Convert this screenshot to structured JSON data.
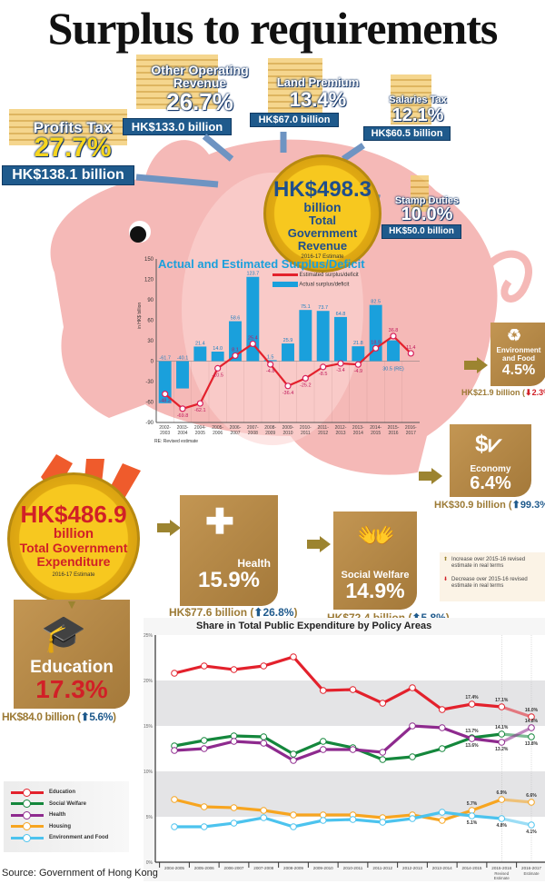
{
  "title": "Surplus to requirements",
  "revenue": {
    "items": [
      {
        "name": "Profits Tax",
        "pct": "27.7%",
        "amount": "HK$138.1 billion"
      },
      {
        "name": "Other Operating Revenue",
        "pct": "26.7%",
        "amount": "HK$133.0 billion"
      },
      {
        "name": "Land Premium",
        "pct": "13.4%",
        "amount": "HK$67.0 billion"
      },
      {
        "name": "Salaries Tax",
        "pct": "12.1%",
        "amount": "HK$60.5 billion"
      },
      {
        "name": "Stamp Duties",
        "pct": "10.0%",
        "amount": "HK$50.0 billion"
      }
    ],
    "total": "HK$498.3",
    "unit": "billion",
    "label": "Total Government Revenue",
    "note": "2016-17 Estimate"
  },
  "expenditure": {
    "total": "HK$486.9",
    "unit": "billion",
    "label": "Total Government Expenditure",
    "note": "2016-17 Estimate",
    "areas": [
      {
        "name": "Environment and Food",
        "pct": "4.5%",
        "amount": "HK$21.9 billion",
        "change": "2.3%",
        "direction": "down",
        "icon": "recycle-icon"
      },
      {
        "name": "Economy",
        "pct": "6.4%",
        "amount": "HK$30.9 billion",
        "change": "99.3%",
        "direction": "up",
        "icon": "dollar-chart-icon"
      },
      {
        "name": "Health",
        "pct": "15.9%",
        "amount": "HK$77.6 billion",
        "change": "26.8%",
        "direction": "up",
        "icon": "medical-kit-icon"
      },
      {
        "name": "Social Welfare",
        "pct": "14.9%",
        "amount": "HK$72.4 billion",
        "change": "5.8%",
        "direction": "up",
        "icon": "caregiver-icon"
      },
      {
        "name": "Education",
        "pct": "17.3%",
        "amount": "HK$84.0 billion",
        "change": "5.6%",
        "direction": "up",
        "icon": "graduation-cap-icon"
      }
    ],
    "key": {
      "up": "Increase over 2015-16 revised estimate in real terms",
      "down": "Decrease over 2015-16 revised estimate in real terms"
    }
  },
  "source": "Source: Government of Hong Kong",
  "colors": {
    "pig": "#f5b9b7",
    "coin": "#f7c81f",
    "navy": "#1f5a8c",
    "gold": "#b08443",
    "bar": "#1aa0dc",
    "line": "#e3212c"
  },
  "chart_data": [
    {
      "type": "bar",
      "title": "Actual and Estimated Surplus/Deficit",
      "ylabel": "in HK$ billion",
      "ylim": [
        -90,
        150
      ],
      "yticks": [
        -90,
        -60,
        -30,
        0,
        30,
        60,
        90,
        120,
        150
      ],
      "categories": [
        "2002-2003",
        "2003-2004",
        "2004-2005",
        "2005-2006",
        "2006-2007",
        "2007-2008",
        "2008-2009",
        "2009-2010",
        "2010-2011",
        "2011-2012",
        "2012-2013",
        "2013-2014",
        "2014-2015",
        "2015-2016",
        "2016-2017"
      ],
      "series": [
        {
          "name": "Actual surplus/deficit",
          "type": "bar",
          "values": [
            -61.7,
            -40.1,
            21.4,
            14.0,
            58.6,
            123.7,
            1.5,
            25.9,
            75.1,
            73.7,
            64.8,
            21.8,
            82.5,
            30.5,
            null
          ],
          "labels": [
            "-61.7",
            "-40.1",
            "21.4",
            "14.0",
            "58.6",
            "123.7",
            "1.5",
            "25.9",
            "75.1",
            "73.7",
            "64.8",
            "21.8",
            "82.5",
            "30.5 (RE)",
            ""
          ]
        },
        {
          "name": "Estimated surplus/deficit",
          "type": "line",
          "values": [
            -48.2,
            -69.8,
            -62.1,
            -10.5,
            8.1,
            25.4,
            -4.8,
            -36.4,
            -25.2,
            -8.5,
            -3.4,
            -4.9,
            18.9,
            36.8,
            11.4
          ]
        }
      ],
      "note": "RE: Revised estimate",
      "legend": "top-right"
    },
    {
      "type": "line",
      "title": "Share in Total Public Expenditure by Policy Areas",
      "ylim": [
        0,
        25
      ],
      "yticks": [
        "0%",
        "5%",
        "10%",
        "15%",
        "20%",
        "25%"
      ],
      "categories": [
        "2004-2005",
        "2005-2006",
        "2006-2007",
        "2007-2008",
        "2008-2009",
        "2009-2010",
        "2010-2011",
        "2011-2012",
        "2012-2013",
        "2013-2014",
        "2014-2015",
        "2015-2016",
        "2016-2017"
      ],
      "category_notes": {
        "2015-2016": "Revised Estimate",
        "2016-2017": "Estimate"
      },
      "series": [
        {
          "name": "Education",
          "color": "#e3212c",
          "values": [
            20.8,
            21.6,
            21.2,
            21.6,
            22.6,
            18.9,
            19.0,
            17.5,
            19.2,
            16.8,
            17.4,
            17.1,
            16.0
          ],
          "labels": {
            "10": "17.4%",
            "11": "17.1%",
            "12": "16.0%"
          }
        },
        {
          "name": "Social Welfare",
          "color": "#14873c",
          "values": [
            12.8,
            13.4,
            13.9,
            13.8,
            11.9,
            13.3,
            12.6,
            11.3,
            11.6,
            12.5,
            13.7,
            14.1,
            13.8
          ],
          "labels": {
            "10": "13.7%",
            "11": "14.1%",
            "12": "13.8%"
          }
        },
        {
          "name": "Health",
          "color": "#8e2a8e",
          "values": [
            12.3,
            12.5,
            13.3,
            13.1,
            11.2,
            12.4,
            12.4,
            12.1,
            15.0,
            14.8,
            13.6,
            13.2,
            14.8
          ],
          "labels": {
            "10": "13.6%",
            "11": "13.2%",
            "12": "14.8%"
          }
        },
        {
          "name": "Housing",
          "color": "#f7a520",
          "values": [
            6.9,
            6.1,
            6.0,
            5.7,
            5.2,
            5.2,
            5.2,
            4.9,
            5.2,
            4.6,
            5.7,
            6.9,
            6.6
          ],
          "labels": {
            "10": "5.7%",
            "11": "6.9%",
            "12": "6.6%"
          }
        },
        {
          "name": "Environment and Food",
          "color": "#4cc3ee",
          "values": [
            3.9,
            3.9,
            4.3,
            4.9,
            3.9,
            4.6,
            4.7,
            4.4,
            4.8,
            5.5,
            5.1,
            4.8,
            4.1
          ],
          "labels": {
            "10": "5.1%",
            "11": "4.8%",
            "12": "4.1%"
          }
        }
      ],
      "legend": "bottom-left",
      "grid": "alternating bands"
    }
  ]
}
